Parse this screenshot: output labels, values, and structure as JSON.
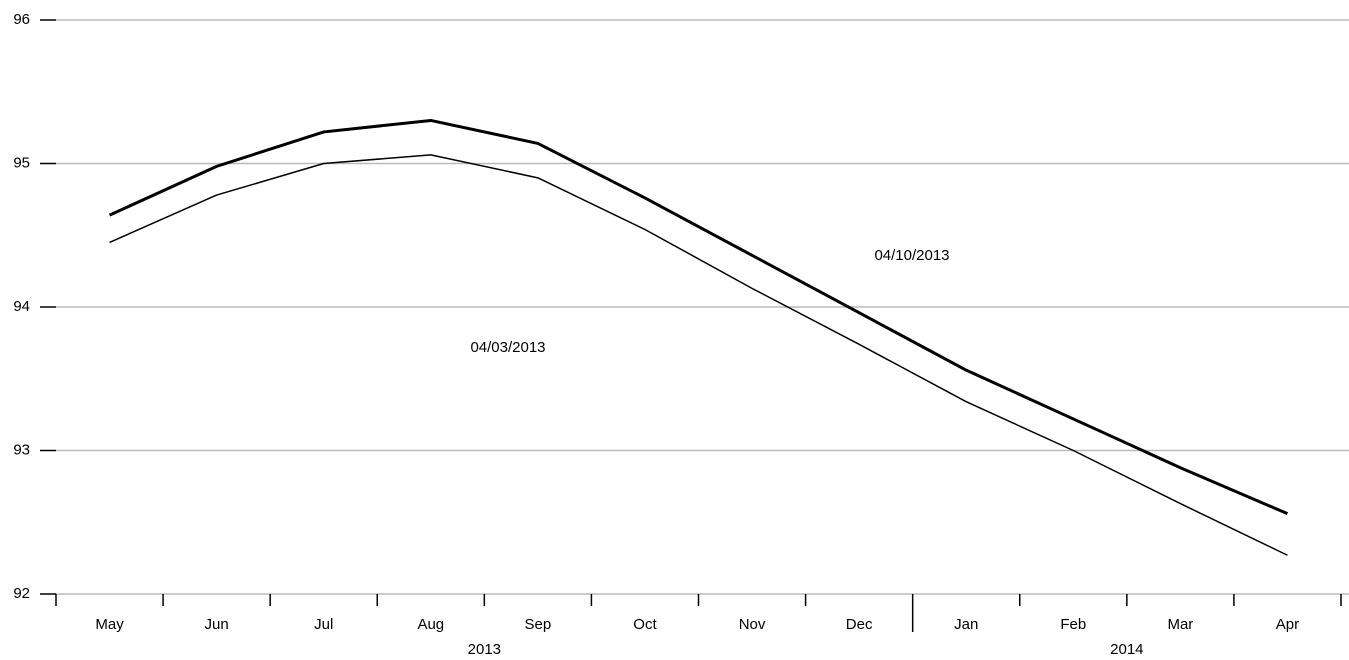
{
  "chart_data": {
    "type": "line",
    "categories": [
      "May",
      "Jun",
      "Jul",
      "Aug",
      "Sep",
      "Oct",
      "Nov",
      "Dec",
      "Jan",
      "Feb",
      "Mar",
      "Apr"
    ],
    "x_groups": [
      {
        "label": "2013",
        "count": 8
      },
      {
        "label": "2014",
        "count": 4
      }
    ],
    "series": [
      {
        "name": "04/10/2013",
        "color": "#000000",
        "line_width": 3,
        "values": [
          94.64,
          94.98,
          95.22,
          95.3,
          95.14,
          94.76,
          94.36,
          93.96,
          93.56,
          93.22,
          92.88,
          92.56
        ]
      },
      {
        "name": "04/03/2013",
        "color": "#000000",
        "line_width": 1.5,
        "values": [
          94.45,
          94.78,
          95.0,
          95.06,
          94.9,
          94.54,
          94.13,
          93.74,
          93.34,
          93.0,
          92.63,
          92.27
        ]
      }
    ],
    "ylim": [
      92,
      96
    ],
    "yticks": [
      92,
      93,
      94,
      95,
      96
    ],
    "grid": true
  }
}
